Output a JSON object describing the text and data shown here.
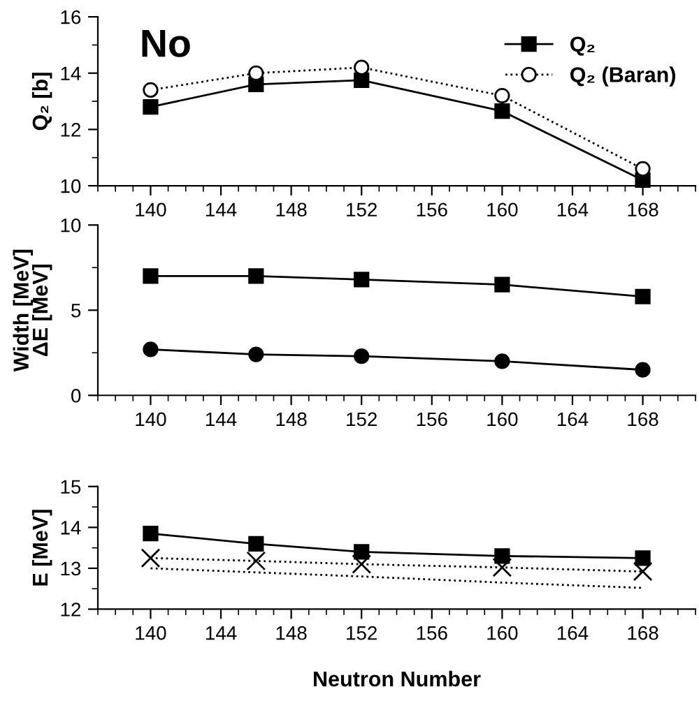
{
  "chart_data": [
    {
      "type": "line",
      "ylabel": "Q₂ [b]",
      "annotations": [
        "No"
      ],
      "x": [
        140,
        146,
        152,
        160,
        168
      ],
      "xlim": [
        137,
        171
      ],
      "xticks": [
        140,
        144,
        148,
        152,
        156,
        160,
        164,
        168
      ],
      "ylim": [
        10,
        16
      ],
      "yticks": [
        10,
        12,
        14,
        16
      ],
      "legend": "top right",
      "grid": false,
      "series": [
        {
          "name": "Q₂",
          "color": "#000000",
          "marker": "square",
          "line_style": "solid",
          "values": [
            12.8,
            13.6,
            13.75,
            12.65,
            10.2
          ]
        },
        {
          "name": "Q₂ (Baran)",
          "color": "#000000",
          "marker": "circle",
          "line_style": "dotted",
          "values": [
            13.4,
            14.0,
            14.2,
            13.2,
            10.6
          ]
        }
      ]
    },
    {
      "type": "line",
      "ylabel": "Width [MeV]\nΔE [MeV]",
      "x": [
        140,
        146,
        152,
        160,
        168
      ],
      "xlim": [
        137,
        171
      ],
      "xticks": [
        140,
        144,
        148,
        152,
        156,
        160,
        164,
        168
      ],
      "ylim": [
        0,
        10
      ],
      "yticks": [
        0,
        5,
        10
      ],
      "grid": false,
      "series": [
        {
          "color": "#000000",
          "marker": "square",
          "line_style": "solid",
          "values": [
            7.0,
            7.0,
            6.8,
            6.5,
            5.8
          ]
        },
        {
          "color": "#000000",
          "marker": "circle",
          "line_style": "solid",
          "values": [
            2.7,
            2.4,
            2.3,
            2.0,
            1.5
          ]
        }
      ]
    },
    {
      "type": "line",
      "ylabel": "E [MeV]",
      "xlabel": "Neutron Number",
      "x": [
        140,
        146,
        152,
        160,
        168
      ],
      "xlim": [
        137,
        171
      ],
      "xticks": [
        140,
        144,
        148,
        152,
        156,
        160,
        164,
        168
      ],
      "ylim": [
        12,
        15
      ],
      "yticks": [
        12,
        13,
        14,
        15
      ],
      "grid": false,
      "series": [
        {
          "color": "#000000",
          "marker": "square",
          "line_style": "solid",
          "values": [
            13.85,
            13.6,
            13.4,
            13.3,
            13.25
          ]
        },
        {
          "color": "#000000",
          "marker": "cross",
          "line_style": "dotted",
          "values": [
            13.25,
            13.18,
            13.1,
            13.02,
            12.92
          ]
        },
        {
          "color": "#000000",
          "marker": "none",
          "line_style": "dotted",
          "values": [
            13.0,
            12.9,
            12.8,
            12.65,
            12.52
          ]
        }
      ]
    }
  ]
}
